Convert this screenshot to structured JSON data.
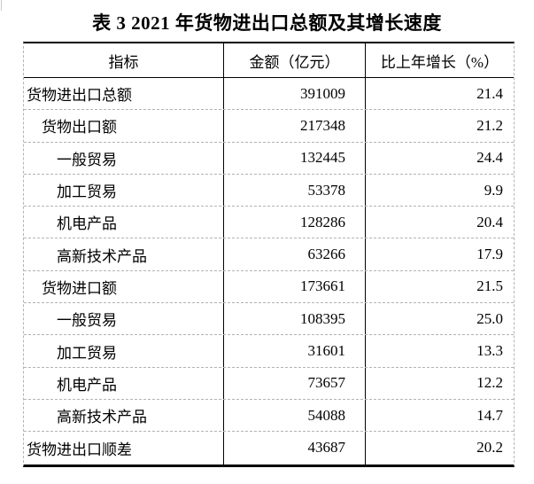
{
  "title": "表 3 2021 年货物进出口总额及其增长速度",
  "table": {
    "headers": {
      "indicator": "指标",
      "amount": "金额（亿元）",
      "growth": "比上年增长（%）"
    },
    "rows": [
      {
        "indicator": "货物进出口总额",
        "indent": 0,
        "amount": "391009",
        "growth": "21.4"
      },
      {
        "indicator": "货物出口额",
        "indent": 1,
        "amount": "217348",
        "growth": "21.2"
      },
      {
        "indicator": "一般贸易",
        "indent": 2,
        "amount": "132445",
        "growth": "24.4"
      },
      {
        "indicator": "加工贸易",
        "indent": 2,
        "amount": "53378",
        "growth": "9.9"
      },
      {
        "indicator": "机电产品",
        "indent": 2,
        "amount": "128286",
        "growth": "20.4"
      },
      {
        "indicator": "高新技术产品",
        "indent": 2,
        "amount": "63266",
        "growth": "17.9"
      },
      {
        "indicator": "货物进口额",
        "indent": 1,
        "amount": "173661",
        "growth": "21.5"
      },
      {
        "indicator": "一般贸易",
        "indent": 2,
        "amount": "108395",
        "growth": "25.0"
      },
      {
        "indicator": "加工贸易",
        "indent": 2,
        "amount": "31601",
        "growth": "13.3"
      },
      {
        "indicator": "机电产品",
        "indent": 2,
        "amount": "73657",
        "growth": "12.2"
      },
      {
        "indicator": "高新技术产品",
        "indent": 2,
        "amount": "54088",
        "growth": "14.7"
      },
      {
        "indicator": "货物进出口顺差",
        "indent": 0,
        "amount": "43687",
        "growth": "20.2"
      }
    ]
  },
  "colors": {
    "text": "#000000",
    "solid_border": "#000000",
    "dashed_border": "#b3b3b3",
    "background": "#ffffff"
  }
}
